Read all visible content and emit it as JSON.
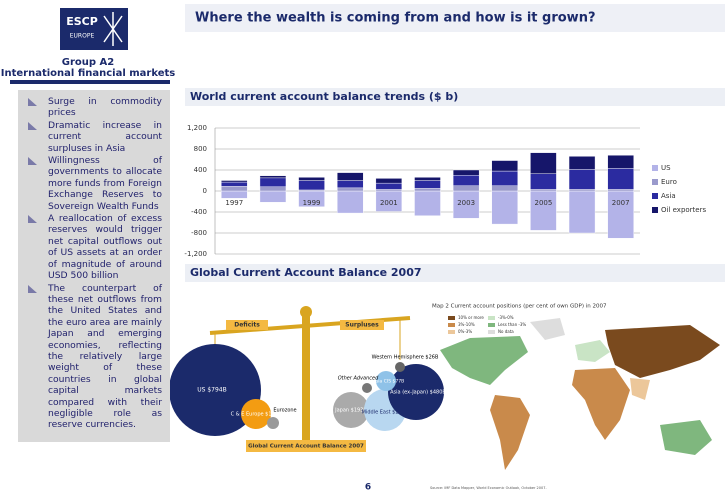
{
  "header": {
    "logo_top": "ESCP",
    "logo_bottom": "EUROPE",
    "group": "Group A2",
    "course": "International financial markets",
    "title": "Where the wealth is coming from and how is it grown?"
  },
  "bullets": [
    "Surge in commodity prices",
    "Dramatic increase in current account surpluses in Asia",
    "Willingness of governments to allocate more funds from Foreign Exchange Reserves to Sovereign Wealth Funds",
    "A reallocation of excess reserves would trigger net capital outflows out of US assets at an order of magnitude of around USD 500 billion",
    "The counterpart of these net outflows from the United States and the euro area are mainly Japan and emerging economies, reflecting the relatively large weight of these countries in global capital markets compared with their negligible role as reserve currencies."
  ],
  "chart_data": {
    "type": "stacked_bar",
    "title": "World current account balance trends ($ b)",
    "categories": [
      "1997",
      null,
      "1999",
      null,
      "2001",
      null,
      "2003",
      null,
      "2005",
      null,
      "2007"
    ],
    "series": [
      {
        "name": "US",
        "color": "#b3b3e8",
        "values": [
          -140,
          -215,
          -300,
          -420,
          -390,
          -470,
          -520,
          -630,
          -750,
          -800,
          -900
        ]
      },
      {
        "name": "Euro",
        "color": "#9a9acc",
        "values": [
          90,
          80,
          20,
          60,
          30,
          50,
          100,
          100,
          30,
          30,
          30
        ]
      },
      {
        "name": "Asia",
        "color": "#2b2ba0",
        "values": [
          80,
          170,
          180,
          140,
          120,
          150,
          200,
          280,
          300,
          380,
          400
        ]
      },
      {
        "name": "Oil exporters",
        "color": "#16166a",
        "values": [
          30,
          40,
          60,
          150,
          90,
          60,
          100,
          200,
          400,
          250,
          250
        ]
      }
    ],
    "ylim": [
      -1200,
      1200
    ],
    "yticks": [
      {
        "value": 1200,
        "label": "1,200"
      },
      800,
      400,
      0,
      -400,
      -800,
      {
        "value": -1200,
        "label": "-1,200"
      }
    ],
    "grid": true
  },
  "balance": {
    "title": "Global Current Account Balance 2007",
    "deficits": "Deficits",
    "surpluses": "Surpluses",
    "us": "US $794B",
    "cee": "C & E Europe $120B",
    "eurozone": "Eurozone",
    "other_advanced": "Other Advanced",
    "russia": "Russia CIS $77B",
    "western": "Western Hemisphere $26B",
    "japan": "Japan $193B",
    "middle_east": "Middle East $227B",
    "asia": "Asia (ex-Japan) $480B"
  },
  "map": {
    "title": "Map 2 Current account positions (per cent of own GDP) in 2007",
    "legend": [
      "10% or more",
      "3%-10%",
      "0%-3%",
      "-3%-0%",
      "Less than -3%",
      "No data"
    ],
    "source": "Source: IMF Data Mapper, World Economic Outlook, October 2007."
  },
  "page_number": "6"
}
